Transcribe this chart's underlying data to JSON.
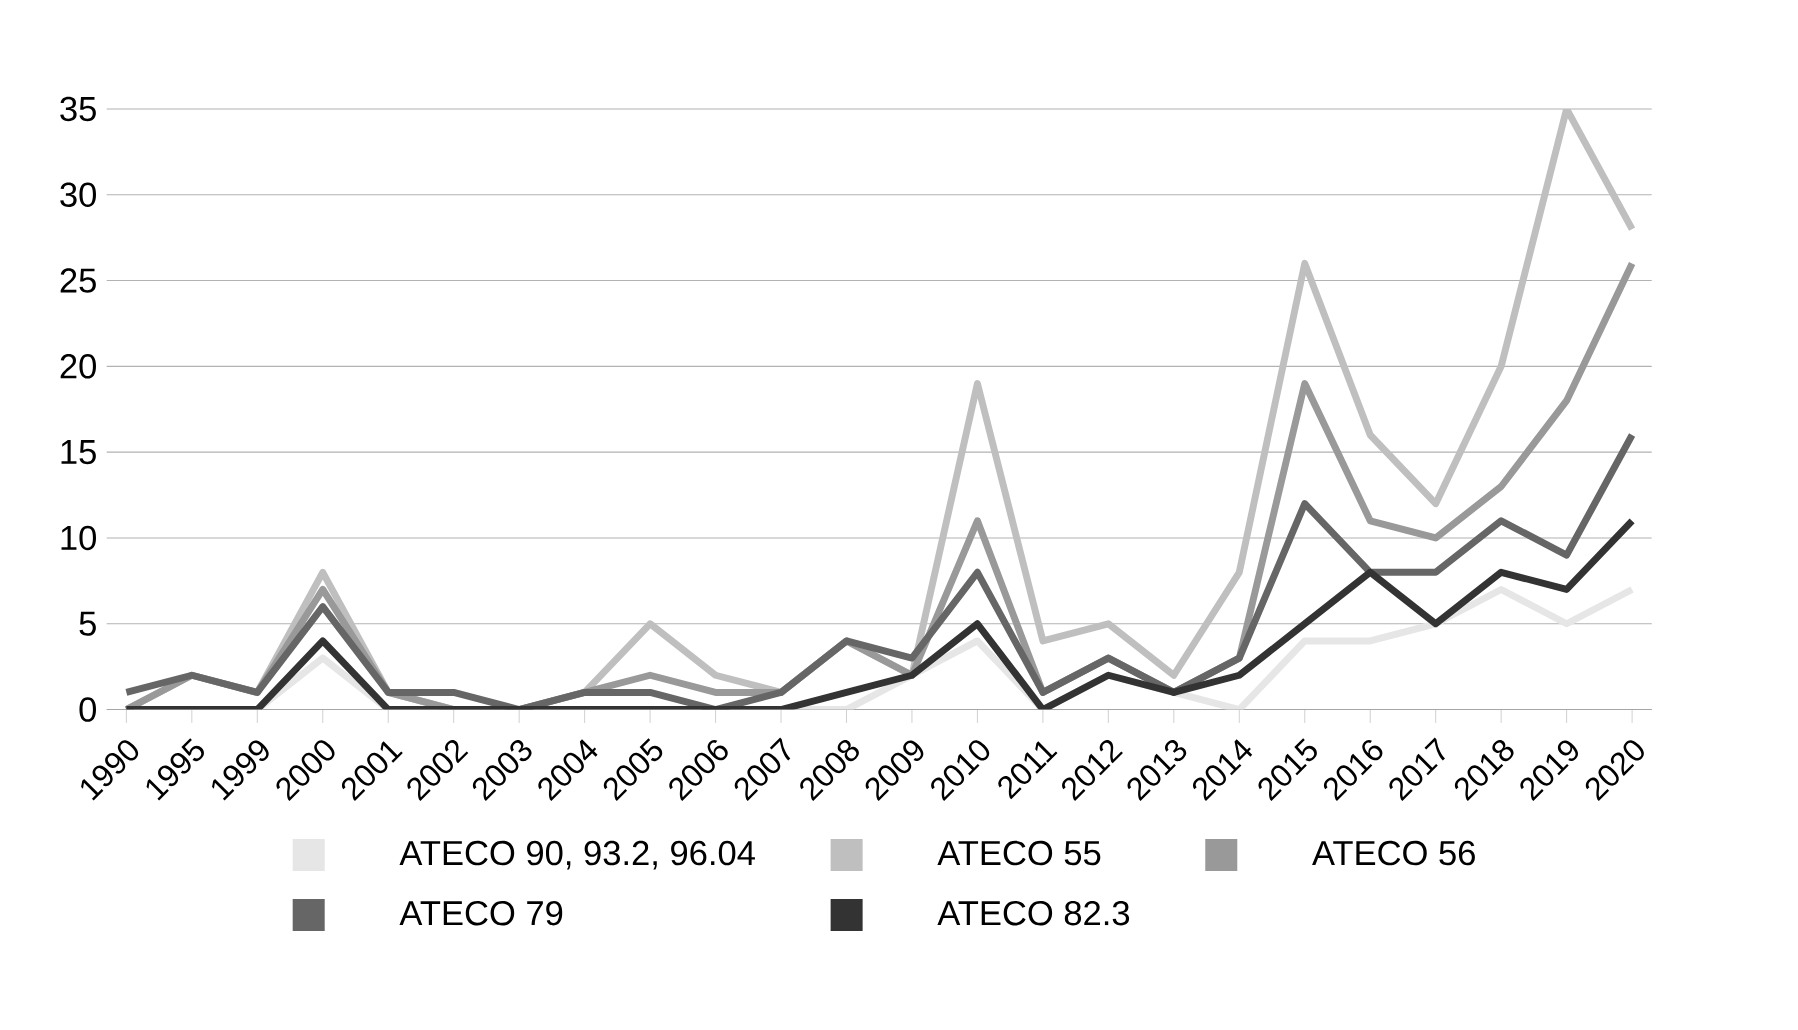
{
  "chart_data": {
    "type": "line",
    "categories": [
      "1990",
      "1995",
      "1999",
      "2000",
      "2001",
      "2002",
      "2003",
      "2004",
      "2005",
      "2006",
      "2007",
      "2008",
      "2009",
      "2010",
      "2011",
      "2012",
      "2013",
      "2014",
      "2015",
      "2016",
      "2017",
      "2018",
      "2019",
      "2020"
    ],
    "series": [
      {
        "name": "ATECO 90, 93.2, 96.04",
        "color": "#e6e6e6",
        "values": [
          0,
          0,
          0,
          3,
          0,
          0,
          0,
          0,
          0,
          0,
          0,
          0,
          2,
          4,
          0,
          2,
          1,
          0,
          4,
          4,
          5,
          7,
          5,
          7
        ]
      },
      {
        "name": "ATECO 55",
        "color": "#bfbfbf",
        "values": [
          0,
          2,
          1,
          8,
          1,
          0,
          0,
          1,
          5,
          2,
          1,
          4,
          2,
          19,
          4,
          5,
          2,
          8,
          26,
          16,
          12,
          20,
          35,
          28
        ]
      },
      {
        "name": "ATECO 56",
        "color": "#999999",
        "values": [
          0,
          2,
          1,
          7,
          1,
          0,
          0,
          1,
          2,
          1,
          1,
          4,
          2,
          11,
          1,
          3,
          1,
          3,
          19,
          11,
          10,
          13,
          18,
          26
        ]
      },
      {
        "name": "ATECO 79",
        "color": "#666666",
        "values": [
          1,
          2,
          1,
          6,
          1,
          1,
          0,
          1,
          1,
          0,
          1,
          4,
          3,
          8,
          1,
          3,
          1,
          3,
          12,
          8,
          8,
          11,
          9,
          16
        ]
      },
      {
        "name": "ATECO 82.3",
        "color": "#333333",
        "values": [
          0,
          0,
          0,
          4,
          0,
          0,
          0,
          0,
          0,
          0,
          0,
          1,
          2,
          5,
          0,
          2,
          1,
          2,
          5,
          8,
          5,
          8,
          7,
          11
        ]
      }
    ],
    "ylim": [
      0,
      35
    ],
    "yticks": [
      0,
      5,
      10,
      15,
      20,
      25,
      30,
      35
    ],
    "grid": "y",
    "legend": "bottom",
    "marker": "none",
    "line_style": "solid"
  }
}
